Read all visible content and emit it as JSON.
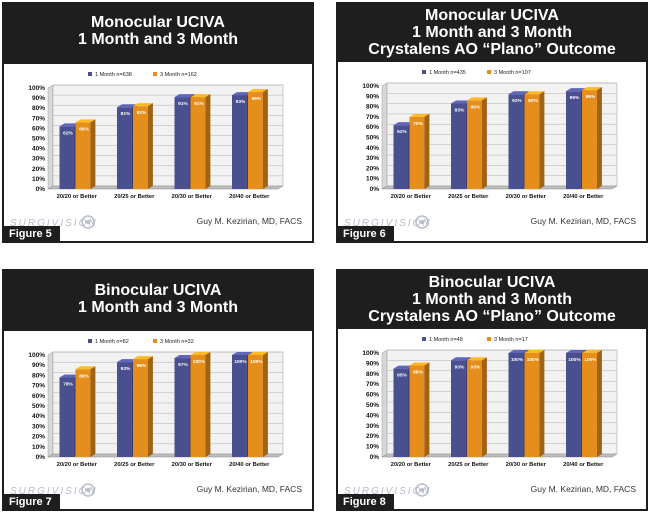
{
  "colors": {
    "series1": "#4a4f8f",
    "series2": "#e58e1c",
    "header": "#1e1e1e"
  },
  "author": "Guy M. Kezirian, MD, FACS",
  "logo_icon": "surgivision-logo-icon",
  "chart_data": [
    {
      "type": "bar",
      "figure_label": "Figure 5",
      "title_lines": [
        "Monocular UCIVA",
        "1 Month and 3 Month"
      ],
      "categories": [
        "20/20 or Better",
        "20/25 or Better",
        "20/30 or Better",
        "20/40 or Better"
      ],
      "series": [
        {
          "name": "1 Month n=638",
          "values": [
            62,
            81,
            91,
            93
          ],
          "labels": [
            "62%",
            "81%",
            "91%",
            "93%"
          ]
        },
        {
          "name": "3 Month n=162",
          "values": [
            66,
            82,
            91,
            96
          ],
          "labels": [
            "66%",
            "82%",
            "91%",
            "96%"
          ]
        }
      ],
      "yticks": [
        "0%",
        "10%",
        "20%",
        "30%",
        "40%",
        "50%",
        "60%",
        "70%",
        "80%",
        "90%",
        "100%"
      ],
      "ylim": [
        0,
        100
      ]
    },
    {
      "type": "bar",
      "figure_label": "Figure 6",
      "title_lines": [
        "Monocular UCIVA",
        "1 Month and 3 Month",
        "Crystalens AO “Plano” Outcome"
      ],
      "categories": [
        "20/20 or Better",
        "20/25 or Better",
        "20/30 or Better",
        "20/40 or Better"
      ],
      "series": [
        {
          "name": "1 Month n=435",
          "values": [
            62,
            83,
            92,
            95
          ],
          "labels": [
            "62%",
            "83%",
            "92%",
            "95%"
          ]
        },
        {
          "name": "3 Month n=107",
          "values": [
            70,
            86,
            92,
            96
          ],
          "labels": [
            "70%",
            "86%",
            "92%",
            "96%"
          ]
        }
      ],
      "yticks": [
        "0%",
        "10%",
        "20%",
        "30%",
        "40%",
        "50%",
        "60%",
        "70%",
        "80%",
        "90%",
        "100%"
      ],
      "ylim": [
        0,
        100
      ]
    },
    {
      "type": "bar",
      "figure_label": "Figure 7",
      "title_lines": [
        "Binocular UCIVA",
        "1 Month and 3 Month"
      ],
      "categories": [
        "20/20 or Better",
        "20/25 or Better",
        "20/30 or Better",
        "20/40 or Better"
      ],
      "series": [
        {
          "name": "1 Month n=82",
          "values": [
            78,
            93,
            97,
            100
          ],
          "labels": [
            "78%",
            "93%",
            "97%",
            "100%"
          ]
        },
        {
          "name": "3 Month n=32",
          "values": [
            86,
            96,
            100,
            100
          ],
          "labels": [
            "86%",
            "96%",
            "100%",
            "100%"
          ]
        }
      ],
      "yticks": [
        "0%",
        "10%",
        "20%",
        "30%",
        "40%",
        "50%",
        "60%",
        "70%",
        "80%",
        "90%",
        "100%"
      ],
      "ylim": [
        0,
        100
      ]
    },
    {
      "type": "bar",
      "figure_label": "Figure 8",
      "title_lines": [
        "Binocular UCIVA",
        "1 Month and 3 Month",
        "Crystalens AO “Plano” Outcome"
      ],
      "categories": [
        "20/20 or Better",
        "20/25 or Better",
        "20/30 or Better",
        "20/40 or Better"
      ],
      "series": [
        {
          "name": "1 Month n=48",
          "values": [
            85,
            93,
            100,
            100
          ],
          "labels": [
            "85%",
            "93%",
            "100%",
            "100%"
          ]
        },
        {
          "name": "3 Month n=17",
          "values": [
            88,
            93,
            100,
            100
          ],
          "labels": [
            "88%",
            "93%",
            "100%",
            "100%"
          ]
        }
      ],
      "yticks": [
        "0%",
        "10%",
        "20%",
        "30%",
        "40%",
        "50%",
        "60%",
        "70%",
        "80%",
        "90%",
        "100%"
      ],
      "ylim": [
        0,
        100
      ]
    }
  ]
}
